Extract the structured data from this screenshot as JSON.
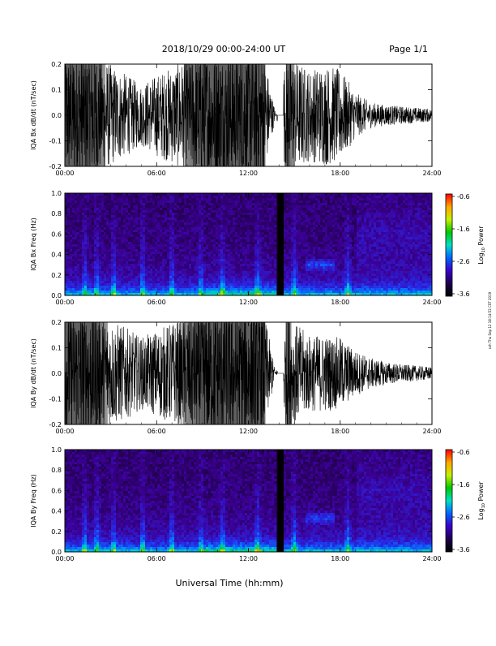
{
  "header": {
    "title": "2018/10/29  00:00-24:00 UT",
    "page": "Page 1/1"
  },
  "xlabel": "Universal Time (hh:mm)",
  "side_note": "ssh Thu Sep 12 18:14:53 CST 2019",
  "colorbar": {
    "label": "Log10 Power",
    "label_text": "Log",
    "label_sub": "10",
    "label_suffix": " Power",
    "ticks": [
      "-0.6",
      "-1.6",
      "-2.6",
      "-3.6"
    ],
    "colors": [
      "#ff0000",
      "#ffa500",
      "#c8f000",
      "#00c800",
      "#00e0c8",
      "#0064ff",
      "#3c00c8",
      "#1e0050",
      "#000000"
    ]
  },
  "chart_data": [
    {
      "type": "line",
      "title": "",
      "ylabel": "IQA Bx dB/dt (nT/sec)",
      "xlim": [
        "00:00",
        "24:00"
      ],
      "ylim": [
        -0.2,
        0.2
      ],
      "x_ticks": [
        "00:00",
        "06:00",
        "12:00",
        "18:00",
        "24:00"
      ],
      "y_ticks": [
        "0.2",
        "0.1",
        "0.0",
        "-0.1",
        "-0.2"
      ],
      "amplitude_envelope": {
        "x_hours": [
          0,
          1,
          2,
          3,
          4,
          5,
          6,
          7,
          8,
          9,
          10,
          11,
          12,
          13,
          13.8,
          14.5,
          15,
          16,
          17,
          18,
          19,
          20,
          21,
          22,
          23,
          24
        ],
        "amp": [
          0.25,
          0.25,
          0.25,
          0.2,
          0.16,
          0.12,
          0.16,
          0.19,
          0.23,
          0.25,
          0.25,
          0.25,
          0.25,
          0.25,
          0.0,
          0.25,
          0.22,
          0.18,
          0.2,
          0.18,
          0.09,
          0.05,
          0.04,
          0.035,
          0.03,
          0.025
        ]
      },
      "data_gap_hours": [
        13.9,
        14.3
      ]
    },
    {
      "type": "heatmap",
      "title": "",
      "ylabel": "IQA Bx Freq (Hz)",
      "xlim": [
        "00:00",
        "24:00"
      ],
      "ylim": [
        0.0,
        1.0
      ],
      "x_ticks": [
        "00:00",
        "06:00",
        "12:00",
        "18:00",
        "24:00"
      ],
      "y_ticks": [
        "1.0",
        "0.8",
        "0.6",
        "0.4",
        "0.2",
        "0.0"
      ],
      "zlim": [
        -3.6,
        -0.6
      ],
      "zlabel": "Log10 Power",
      "vertical_streaks_hours": [
        1.3,
        2.1,
        3.2,
        5.1,
        7.0,
        8.9,
        10.3,
        12.6,
        15.0,
        18.5
      ],
      "feature": {
        "time_range_hours": [
          15.8,
          17.6
        ],
        "freq_hz": 0.3
      },
      "data_gap_hours": [
        13.9,
        14.3
      ]
    },
    {
      "type": "line",
      "title": "",
      "ylabel": "IQA By dB/dt (nT/sec)",
      "xlim": [
        "00:00",
        "24:00"
      ],
      "ylim": [
        -0.2,
        0.2
      ],
      "x_ticks": [
        "00:00",
        "06:00",
        "12:00",
        "18:00",
        "24:00"
      ],
      "y_ticks": [
        "0.2",
        "0.1",
        "0.0",
        "-0.1",
        "-0.2"
      ],
      "amplitude_envelope": {
        "x_hours": [
          0,
          1,
          2,
          3,
          4,
          5,
          6,
          7,
          8,
          9,
          10,
          11,
          12,
          13,
          13.8,
          14.5,
          15,
          16,
          17,
          18,
          19,
          20,
          21,
          22,
          23,
          24
        ],
        "amp": [
          0.25,
          0.25,
          0.25,
          0.21,
          0.18,
          0.14,
          0.17,
          0.2,
          0.23,
          0.25,
          0.25,
          0.25,
          0.25,
          0.25,
          0.0,
          0.25,
          0.2,
          0.15,
          0.15,
          0.14,
          0.09,
          0.06,
          0.045,
          0.035,
          0.03,
          0.025
        ]
      },
      "data_gap_hours": [
        13.9,
        14.3
      ]
    },
    {
      "type": "heatmap",
      "title": "",
      "ylabel": "IQA By Freq (Hz)",
      "xlim": [
        "00:00",
        "24:00"
      ],
      "ylim": [
        0.0,
        1.0
      ],
      "x_ticks": [
        "00:00",
        "06:00",
        "12:00",
        "18:00",
        "24:00"
      ],
      "y_ticks": [
        "1.0",
        "0.8",
        "0.6",
        "0.4",
        "0.2",
        "0.0"
      ],
      "zlim": [
        -3.6,
        -0.6
      ],
      "zlabel": "Log10 Power",
      "vertical_streaks_hours": [
        1.3,
        2.1,
        3.2,
        5.1,
        7.0,
        8.9,
        10.3,
        12.6,
        15.0,
        18.5
      ],
      "feature": {
        "time_range_hours": [
          15.8,
          17.6
        ],
        "freq_hz": 0.33
      },
      "data_gap_hours": [
        13.9,
        14.3
      ]
    }
  ]
}
